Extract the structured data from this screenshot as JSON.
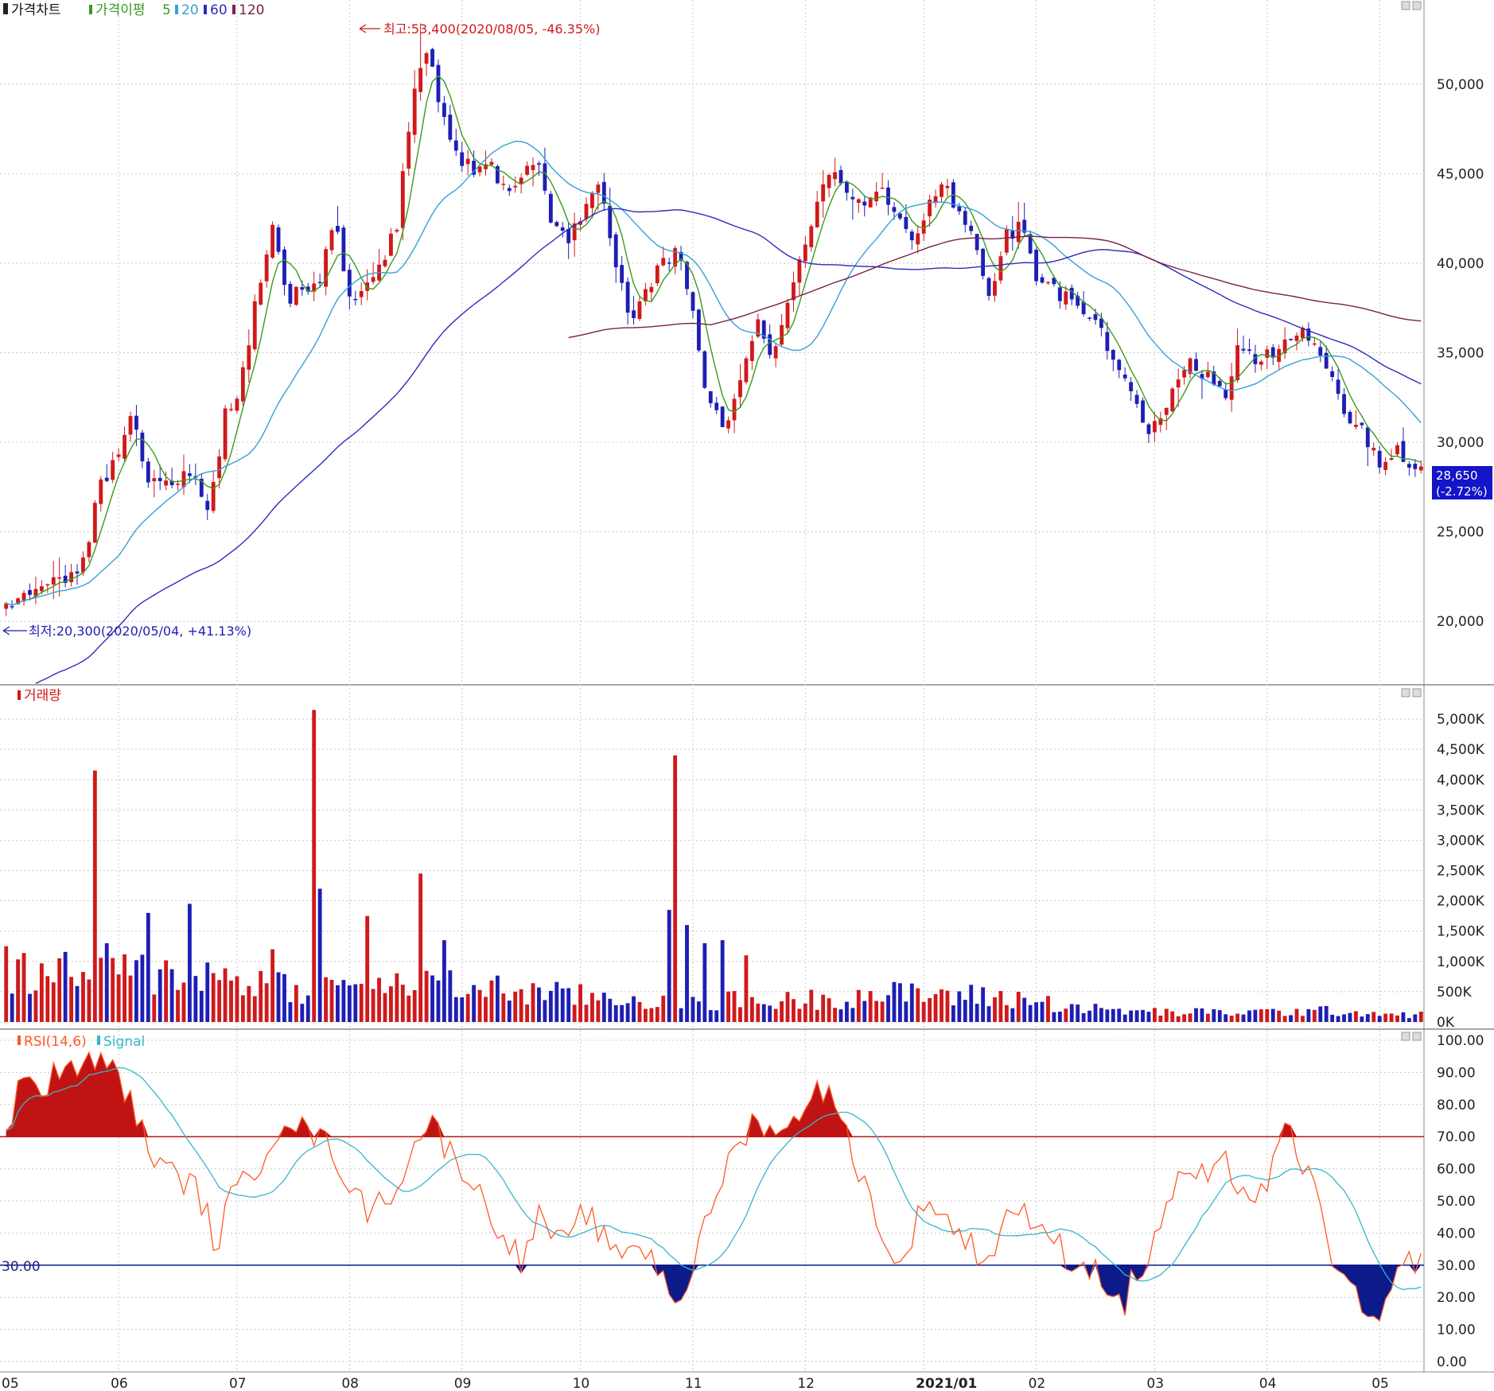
{
  "colors": {
    "up": "#d0191b",
    "down": "#1e1eb5",
    "ma5": "#3b9a1f",
    "ma20": "#35a2d4",
    "ma60": "#2c2cc0",
    "ma120": "#7a2243",
    "rsi": "#ff5a28",
    "signal": "#35b8c8",
    "overbought_fill": "#c01414",
    "oversold_fill": "#0c1a8a",
    "grid": "#c8c8c8"
  },
  "panels": {
    "price": {
      "legend": {
        "title": "가격차트",
        "ma_label": "가격이평",
        "ma_periods": [
          "5",
          "20",
          "60",
          "120"
        ]
      },
      "high_annotation": "최고:53,400(2020/08/05, -46.35%)",
      "low_annotation": "최저:20,300(2020/05/04, +41.13%)",
      "current_price": "28,650",
      "current_change": "(-2.72%)"
    },
    "volume": {
      "legend": "거래량"
    },
    "rsi": {
      "legend_rsi": "RSI(14,6)",
      "legend_signal": "Signal",
      "threshold_label": "30.00"
    }
  },
  "x_axis": {
    "labels": [
      "05",
      "06",
      "07",
      "08",
      "09",
      "10",
      "11",
      "12",
      "2021/01",
      "02",
      "03",
      "04",
      "05"
    ]
  },
  "chart_data": [
    {
      "type": "candlestick",
      "panel": "price",
      "y_ticks": [
        "20,000",
        "25,000",
        "30,000",
        "35,000",
        "40,000",
        "45,000",
        "50,000"
      ],
      "ylim": [
        16500,
        54700
      ],
      "high": 53400,
      "low": 20300,
      "last_close": 28650,
      "close_path": [
        {
          "t": 0,
          "v": 21000
        },
        {
          "t": 2,
          "v": 22000
        },
        {
          "t": 4,
          "v": 22300
        },
        {
          "t": 5,
          "v": 23500
        },
        {
          "t": 6,
          "v": 27500
        },
        {
          "t": 7,
          "v": 28800
        },
        {
          "t": 8,
          "v": 31500
        },
        {
          "t": 9,
          "v": 28000
        },
        {
          "t": 11,
          "v": 28000
        },
        {
          "t": 12,
          "v": 28700
        },
        {
          "t": 13,
          "v": 26000
        },
        {
          "t": 14,
          "v": 31500
        },
        {
          "t": 15,
          "v": 33000
        },
        {
          "t": 16,
          "v": 38000
        },
        {
          "t": 17,
          "v": 42000
        },
        {
          "t": 18,
          "v": 38000
        },
        {
          "t": 19,
          "v": 38500
        },
        {
          "t": 20,
          "v": 39000
        },
        {
          "t": 21,
          "v": 42500
        },
        {
          "t": 22,
          "v": 38000
        },
        {
          "t": 23,
          "v": 38500
        },
        {
          "t": 24,
          "v": 40000
        },
        {
          "t": 25,
          "v": 42000
        },
        {
          "t": 26,
          "v": 49000
        },
        {
          "t": 27,
          "v": 52000
        },
        {
          "t": 28,
          "v": 48000
        },
        {
          "t": 29,
          "v": 46000
        },
        {
          "t": 30,
          "v": 45000
        },
        {
          "t": 31,
          "v": 45500
        },
        {
          "t": 32,
          "v": 44000
        },
        {
          "t": 33,
          "v": 45000
        },
        {
          "t": 34,
          "v": 45500
        },
        {
          "t": 35,
          "v": 42000
        },
        {
          "t": 36,
          "v": 41500
        },
        {
          "t": 37,
          "v": 42500
        },
        {
          "t": 38,
          "v": 45000
        },
        {
          "t": 39,
          "v": 40000
        },
        {
          "t": 40,
          "v": 37000
        },
        {
          "t": 41,
          "v": 38500
        },
        {
          "t": 42,
          "v": 40000
        },
        {
          "t": 43,
          "v": 40500
        },
        {
          "t": 44,
          "v": 37000
        },
        {
          "t": 45,
          "v": 32000
        },
        {
          "t": 46,
          "v": 31000
        },
        {
          "t": 47,
          "v": 33000
        },
        {
          "t": 48,
          "v": 37000
        },
        {
          "t": 49,
          "v": 35000
        },
        {
          "t": 50,
          "v": 37500
        },
        {
          "t": 51,
          "v": 40500
        },
        {
          "t": 52,
          "v": 43500
        },
        {
          "t": 53,
          "v": 45000
        },
        {
          "t": 54,
          "v": 44000
        },
        {
          "t": 55,
          "v": 43500
        },
        {
          "t": 56,
          "v": 44000
        },
        {
          "t": 57,
          "v": 43000
        },
        {
          "t": 58,
          "v": 41500
        },
        {
          "t": 59,
          "v": 43000
        },
        {
          "t": 60,
          "v": 44500
        },
        {
          "t": 61,
          "v": 43000
        },
        {
          "t": 62,
          "v": 41000
        },
        {
          "t": 63,
          "v": 38000
        },
        {
          "t": 64,
          "v": 41500
        },
        {
          "t": 65,
          "v": 42000
        },
        {
          "t": 66,
          "v": 39000
        },
        {
          "t": 67,
          "v": 38500
        },
        {
          "t": 68,
          "v": 38000
        },
        {
          "t": 69,
          "v": 37000
        },
        {
          "t": 70,
          "v": 36500
        },
        {
          "t": 71,
          "v": 34000
        },
        {
          "t": 72,
          "v": 33000
        },
        {
          "t": 73,
          "v": 30500
        },
        {
          "t": 74,
          "v": 31500
        },
        {
          "t": 75,
          "v": 33500
        },
        {
          "t": 76,
          "v": 34500
        },
        {
          "t": 77,
          "v": 33500
        },
        {
          "t": 78,
          "v": 32500
        },
        {
          "t": 79,
          "v": 35500
        },
        {
          "t": 80,
          "v": 34500
        },
        {
          "t": 81,
          "v": 35000
        },
        {
          "t": 82,
          "v": 35500
        },
        {
          "t": 83,
          "v": 36500
        },
        {
          "t": 84,
          "v": 35500
        },
        {
          "t": 85,
          "v": 33000
        },
        {
          "t": 86,
          "v": 31000
        },
        {
          "t": 87,
          "v": 30500
        },
        {
          "t": 88,
          "v": 28500
        },
        {
          "t": 89,
          "v": 29500
        },
        {
          "t": 90,
          "v": 28650
        }
      ],
      "moving_averages": [
        {
          "name": "5",
          "period": 5
        },
        {
          "name": "20",
          "period": 20
        },
        {
          "name": "60",
          "period": 60
        },
        {
          "name": "120",
          "period": 120
        }
      ]
    },
    {
      "type": "bar",
      "panel": "volume",
      "y_ticks": [
        "0K",
        "500K",
        "1,000K",
        "1,500K",
        "2,000K",
        "2,500K",
        "3,000K",
        "3,500K",
        "4,000K",
        "4,500K",
        "5,000K"
      ],
      "ylim": [
        0,
        5500
      ],
      "unit": "K",
      "base_path": [
        {
          "t": 0,
          "v": 900
        },
        {
          "t": 5,
          "v": 850
        },
        {
          "t": 10,
          "v": 900
        },
        {
          "t": 15,
          "v": 800
        },
        {
          "t": 20,
          "v": 600
        },
        {
          "t": 25,
          "v": 650
        },
        {
          "t": 30,
          "v": 650
        },
        {
          "t": 35,
          "v": 500
        },
        {
          "t": 40,
          "v": 420
        },
        {
          "t": 45,
          "v": 400
        },
        {
          "t": 50,
          "v": 380
        },
        {
          "t": 55,
          "v": 500
        },
        {
          "t": 60,
          "v": 500
        },
        {
          "t": 65,
          "v": 420
        },
        {
          "t": 70,
          "v": 220
        },
        {
          "t": 75,
          "v": 170
        },
        {
          "t": 80,
          "v": 180
        },
        {
          "t": 85,
          "v": 200
        },
        {
          "t": 90,
          "v": 130
        }
      ],
      "spikes": [
        {
          "t": 0,
          "v": 1250
        },
        {
          "t": 5.8,
          "v": 4150
        },
        {
          "t": 6.4,
          "v": 1300
        },
        {
          "t": 9.2,
          "v": 1800
        },
        {
          "t": 11.6,
          "v": 1950
        },
        {
          "t": 17.0,
          "v": 1200
        },
        {
          "t": 19.6,
          "v": 5150
        },
        {
          "t": 20.1,
          "v": 2200
        },
        {
          "t": 23.0,
          "v": 1750
        },
        {
          "t": 26.5,
          "v": 2450
        },
        {
          "t": 28.0,
          "v": 1350
        },
        {
          "t": 42.6,
          "v": 1850
        },
        {
          "t": 43.0,
          "v": 4400
        },
        {
          "t": 43.6,
          "v": 1600
        },
        {
          "t": 44.8,
          "v": 1300
        },
        {
          "t": 46.0,
          "v": 1350
        },
        {
          "t": 47.5,
          "v": 1100
        }
      ]
    },
    {
      "type": "line",
      "panel": "rsi",
      "y_ticks": [
        "0.00",
        "10.00",
        "20.00",
        "30.00",
        "40.00",
        "50.00",
        "60.00",
        "70.00",
        "80.00",
        "90.00",
        "100.00"
      ],
      "ylim": [
        0,
        100
      ],
      "overbought": 70,
      "oversold": 30,
      "series": [
        {
          "name": "RSI(14,6)",
          "path": [
            {
              "t": 0,
              "v": 70
            },
            {
              "t": 1,
              "v": 90
            },
            {
              "t": 2,
              "v": 82
            },
            {
              "t": 3,
              "v": 89
            },
            {
              "t": 5,
              "v": 93
            },
            {
              "t": 7,
              "v": 92
            },
            {
              "t": 8,
              "v": 80
            },
            {
              "t": 9,
              "v": 68
            },
            {
              "t": 10,
              "v": 60
            },
            {
              "t": 12,
              "v": 55
            },
            {
              "t": 13,
              "v": 44
            },
            {
              "t": 13.5,
              "v": 34
            },
            {
              "t": 14,
              "v": 48
            },
            {
              "t": 16,
              "v": 60
            },
            {
              "t": 17,
              "v": 70
            },
            {
              "t": 18,
              "v": 77
            },
            {
              "t": 19,
              "v": 72
            },
            {
              "t": 20,
              "v": 70
            },
            {
              "t": 21,
              "v": 65
            },
            {
              "t": 22,
              "v": 55
            },
            {
              "t": 23,
              "v": 47
            },
            {
              "t": 24,
              "v": 50
            },
            {
              "t": 25,
              "v": 55
            },
            {
              "t": 26,
              "v": 65
            },
            {
              "t": 27,
              "v": 76
            },
            {
              "t": 28,
              "v": 68
            },
            {
              "t": 29,
              "v": 62
            },
            {
              "t": 30,
              "v": 55
            },
            {
              "t": 31,
              "v": 45
            },
            {
              "t": 32,
              "v": 40
            },
            {
              "t": 33,
              "v": 30
            },
            {
              "t": 34,
              "v": 45
            },
            {
              "t": 35,
              "v": 40
            },
            {
              "t": 36,
              "v": 35
            },
            {
              "t": 37,
              "v": 48
            },
            {
              "t": 38,
              "v": 40
            },
            {
              "t": 39,
              "v": 32
            },
            {
              "t": 40,
              "v": 38
            },
            {
              "t": 41,
              "v": 34
            },
            {
              "t": 42,
              "v": 28
            },
            {
              "t": 43,
              "v": 18
            },
            {
              "t": 44,
              "v": 30
            },
            {
              "t": 45,
              "v": 45
            },
            {
              "t": 46,
              "v": 60
            },
            {
              "t": 47,
              "v": 68
            },
            {
              "t": 48,
              "v": 76
            },
            {
              "t": 49,
              "v": 73
            },
            {
              "t": 50,
              "v": 70
            },
            {
              "t": 51,
              "v": 80
            },
            {
              "t": 52,
              "v": 87
            },
            {
              "t": 53,
              "v": 80
            },
            {
              "t": 54,
              "v": 68
            },
            {
              "t": 55,
              "v": 55
            },
            {
              "t": 56,
              "v": 42
            },
            {
              "t": 57,
              "v": 26
            },
            {
              "t": 58,
              "v": 40
            },
            {
              "t": 59,
              "v": 52
            },
            {
              "t": 60,
              "v": 45
            },
            {
              "t": 61,
              "v": 40
            },
            {
              "t": 62,
              "v": 35
            },
            {
              "t": 63,
              "v": 32
            },
            {
              "t": 64,
              "v": 45
            },
            {
              "t": 65,
              "v": 50
            },
            {
              "t": 66,
              "v": 38
            },
            {
              "t": 67,
              "v": 40
            },
            {
              "t": 68,
              "v": 32
            },
            {
              "t": 69,
              "v": 30
            },
            {
              "t": 70,
              "v": 28
            },
            {
              "t": 71,
              "v": 20
            },
            {
              "t": 71.5,
              "v": 14
            },
            {
              "t": 72,
              "v": 25
            },
            {
              "t": 73,
              "v": 30
            },
            {
              "t": 74,
              "v": 45
            },
            {
              "t": 75,
              "v": 55
            },
            {
              "t": 76,
              "v": 60
            },
            {
              "t": 77,
              "v": 55
            },
            {
              "t": 78,
              "v": 62
            },
            {
              "t": 79,
              "v": 55
            },
            {
              "t": 80,
              "v": 50
            },
            {
              "t": 81,
              "v": 58
            },
            {
              "t": 82,
              "v": 73
            },
            {
              "t": 83,
              "v": 62
            },
            {
              "t": 84,
              "v": 50
            },
            {
              "t": 85,
              "v": 32
            },
            {
              "t": 86,
              "v": 22
            },
            {
              "t": 87,
              "v": 15
            },
            {
              "t": 88,
              "v": 11
            },
            {
              "t": 89,
              "v": 25
            },
            {
              "t": 90,
              "v": 33
            },
            {
              "t": 90.6,
              "v": 30
            }
          ]
        },
        {
          "name": "Signal",
          "smoothing": 6
        }
      ]
    }
  ]
}
